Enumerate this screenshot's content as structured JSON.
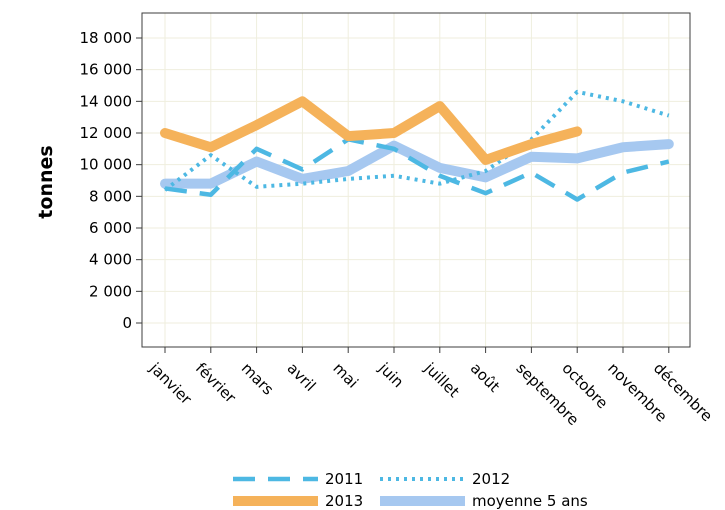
{
  "chart_data": {
    "type": "line",
    "title": "",
    "xlabel": "",
    "ylabel": "tonnes",
    "ylim": [
      -1800,
      20000
    ],
    "yticks": [
      0,
      2000,
      4000,
      6000,
      8000,
      10000,
      12000,
      14000,
      16000,
      18000
    ],
    "ytick_labels": [
      "0",
      "2 000",
      "4 000",
      "6 000",
      "8 000",
      "10 000",
      "12 000",
      "14 000",
      "16 000",
      "18 000"
    ],
    "categories": [
      "janvier",
      "février",
      "mars",
      "avril",
      "mai",
      "juin",
      "juillet",
      "août",
      "septembre",
      "octobre",
      "novembre",
      "décembre"
    ],
    "grid": true,
    "legend_position": "bottom",
    "series": [
      {
        "name": "2011",
        "style": "dashed",
        "color": "#4db8e3",
        "values": [
          8500,
          8100,
          11000,
          9700,
          11600,
          11000,
          9300,
          8200,
          9500,
          7800,
          9500,
          10200
        ]
      },
      {
        "name": "2012",
        "style": "dotted",
        "color": "#4db8e3",
        "values": [
          8400,
          10600,
          8600,
          8800,
          9100,
          9300,
          8800,
          9600,
          11600,
          14600,
          14000,
          13100
        ]
      },
      {
        "name": "2013",
        "style": "solid-thick",
        "color": "#f5b25a",
        "values": [
          12000,
          11100,
          12500,
          14000,
          11800,
          12000,
          13700,
          10300,
          11300,
          12100,
          null,
          null
        ]
      },
      {
        "name": "moyenne 5 ans",
        "style": "solid-thick",
        "color": "#a6c8f0",
        "values": [
          8800,
          8800,
          10200,
          9100,
          9600,
          11200,
          9800,
          9200,
          10500,
          10400,
          11100,
          11300
        ]
      }
    ]
  }
}
